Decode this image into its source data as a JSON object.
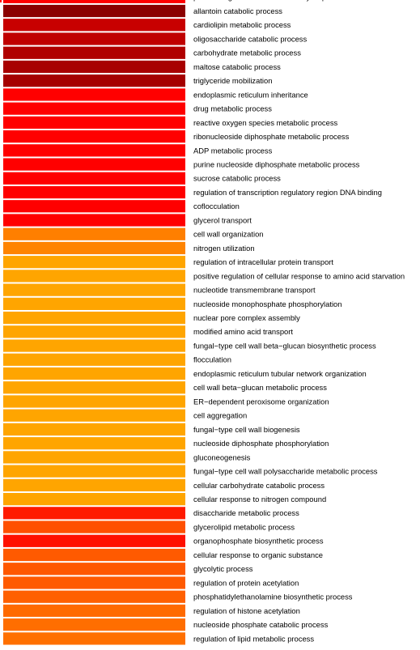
{
  "chart_data": {
    "type": "heatmap",
    "title": "",
    "xlabel": "",
    "ylabel": "",
    "legend": "none",
    "grid": false,
    "color_scale": {
      "low": "#ff0000",
      "high": "#ffa500",
      "dark": "#8b0000"
    },
    "categories": [
      "positive regulation of mitotic cell cycle phase transition",
      "allantoin catabolic process",
      "cardiolipin metabolic process",
      "oligosaccharide catabolic process",
      "carbohydrate metabolic process",
      "maltose catabolic process",
      "triglyceride mobilization",
      "endoplasmic reticulum inheritance",
      "drug metabolic process",
      "reactive oxygen species metabolic process",
      "ribonucleoside diphosphate metabolic process",
      "ADP metabolic process",
      "purine nucleoside diphosphate metabolic process",
      "sucrose catabolic process",
      "regulation of transcription regulatory region DNA binding",
      "coflocculation",
      "glycerol transport",
      "cell wall organization",
      "nitrogen utilization",
      "regulation of intracellular protein transport",
      "positive regulation of cellular response to amino acid starvation",
      "nucleotide transmembrane transport",
      "nucleoside monophosphate phosphorylation",
      "nuclear pore complex assembly",
      "modified amino acid transport",
      "fungal−type cell wall beta−glucan biosynthetic process",
      "flocculation",
      "endoplasmic reticulum tubular network organization",
      "cell wall beta−glucan metabolic process",
      "ER−dependent peroxisome organization",
      "cell aggregation",
      "fungal−type cell wall biogenesis",
      "nucleoside diphosphate phosphorylation",
      "gluconeogenesis",
      "fungal−type cell wall polysaccharide metabolic process",
      "cellular carbohydrate catabolic process",
      "cellular response to nitrogen compound",
      "disaccharide metabolic process",
      "glycerolipid metabolic process",
      "organophosphate biosynthetic process",
      "cellular response to organic substance",
      "glycolytic process",
      "regulation of protein acetylation",
      "phosphatidylethanolamine biosynthetic process",
      "regulation of histone acetylation",
      "nucleoside phosphate catabolic process",
      "regulation of lipid metabolic process"
    ],
    "colors": [
      "#ff0000",
      "#8b0000",
      "#c80000",
      "#c00000",
      "#b00000",
      "#a80000",
      "#a50000",
      "#ff0000",
      "#ff0000",
      "#ff0000",
      "#ff0000",
      "#ff0000",
      "#ff0000",
      "#ff0000",
      "#ff0000",
      "#ff0000",
      "#ff0000",
      "#ff7f00",
      "#ff8400",
      "#ffa500",
      "#ffa500",
      "#ffa500",
      "#ffa500",
      "#ffa500",
      "#ffa500",
      "#ffa500",
      "#ffa500",
      "#ffa500",
      "#ffa500",
      "#ffa500",
      "#ffa500",
      "#ffa500",
      "#ffa500",
      "#ffa500",
      "#ffa500",
      "#ffa500",
      "#ffa500",
      "#ff1a00",
      "#ff5000",
      "#ff1000",
      "#ff5a00",
      "#ff5800",
      "#ff5a00",
      "#ff6000",
      "#ff6a00",
      "#ff6e00",
      "#ff7000"
    ]
  }
}
